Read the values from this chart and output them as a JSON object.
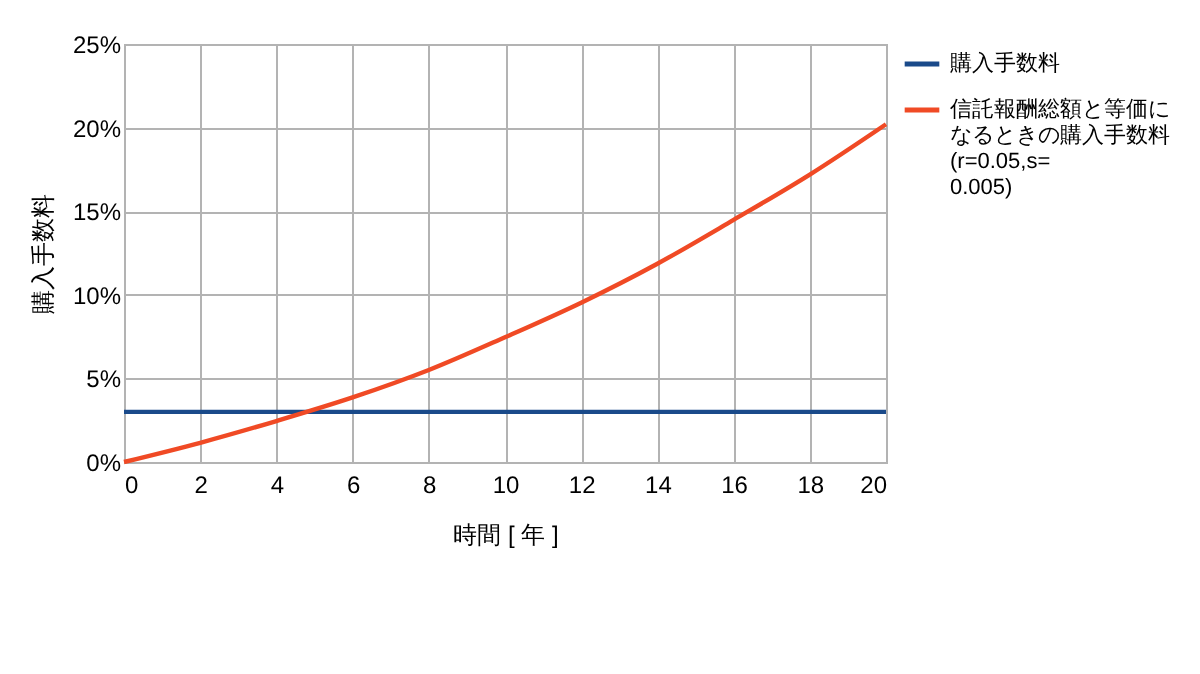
{
  "chart_data": {
    "type": "line",
    "xlabel": "時間 [ 年 ]",
    "ylabel": "購入手数料",
    "x": [
      0,
      2,
      4,
      6,
      8,
      10,
      12,
      14,
      16,
      18,
      20
    ],
    "series": [
      {
        "name": "購入手数料",
        "color": "#1a4a8a",
        "values": [
          3,
          3,
          3,
          3,
          3,
          3,
          3,
          3,
          3,
          3,
          3
        ]
      },
      {
        "name": "信託報酬総額と等価になるときの購入手数料(r=0.05,s=0.005)",
        "color": "#f04a25",
        "values": [
          0,
          1.15,
          2.45,
          3.86,
          5.5,
          7.46,
          9.53,
          11.86,
          14.48,
          17.19,
          20.2
        ]
      }
    ],
    "xlim": [
      0,
      20
    ],
    "xticks": [
      0,
      2,
      4,
      6,
      8,
      10,
      12,
      14,
      16,
      18,
      20
    ],
    "ylim": [
      0,
      25
    ],
    "yticks": [
      {
        "value": 0,
        "label": "0%"
      },
      {
        "value": 5,
        "label": "5%"
      },
      {
        "value": 10,
        "label": "10%"
      },
      {
        "value": 15,
        "label": "15%"
      },
      {
        "value": 20,
        "label": "20%"
      },
      {
        "value": 25,
        "label": "25%"
      }
    ],
    "grid": true,
    "legend": "right",
    "marker": "none",
    "line_style": "solid"
  }
}
